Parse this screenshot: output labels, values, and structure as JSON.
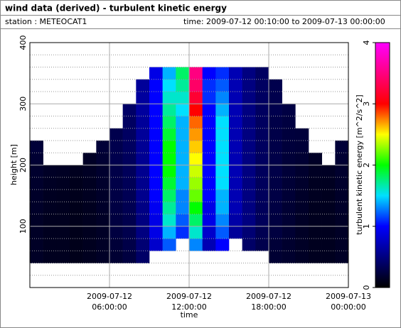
{
  "header": {
    "title": "wind data (derived) - turbulent kinetic energy",
    "station": "station : METEOCAT1",
    "time": "time: 2009-07-12 00:10:00 to 2009-07-13 00:00:00"
  },
  "chart_data": {
    "type": "heatmap",
    "x_label": "time",
    "y_label": "height [m]",
    "colorbar_label": "turbulent kinetic energy [m^2/s^2]",
    "xlim": [
      "2009-07-12 00:00:00",
      "2009-07-13 00:00:00"
    ],
    "xticks": [
      "2009-07-12 06:00:00",
      "2009-07-12 12:00:00",
      "2009-07-12 18:00:00",
      "2009-07-13 00:00:00"
    ],
    "ylim": [
      0,
      400
    ],
    "yticks": [
      100,
      200,
      300,
      400
    ],
    "y_minor_ticks": [
      20,
      40,
      60,
      80,
      120,
      140,
      160,
      180,
      220,
      240,
      260,
      280,
      320,
      340,
      360,
      380
    ],
    "clim": [
      0,
      4
    ],
    "cticks": [
      0,
      1,
      2,
      3,
      4
    ],
    "grid": true,
    "colorscale": [
      [
        0,
        "#000000"
      ],
      [
        0.5,
        "#000080"
      ],
      [
        1,
        "#0000ff"
      ],
      [
        1.5,
        "#00e0ff"
      ],
      [
        2,
        "#00ff00"
      ],
      [
        2.5,
        "#ffff00"
      ],
      [
        3,
        "#ff0000"
      ],
      [
        3.5,
        "#ff0080"
      ],
      [
        4,
        "#ff00ff"
      ]
    ],
    "x": [
      "2009-07-12 00:00:00",
      "2009-07-12 01:00:00",
      "2009-07-12 02:00:00",
      "2009-07-12 03:00:00",
      "2009-07-12 04:00:00",
      "2009-07-12 05:00:00",
      "2009-07-12 06:00:00",
      "2009-07-12 07:00:00",
      "2009-07-12 08:00:00",
      "2009-07-12 09:00:00",
      "2009-07-12 10:00:00",
      "2009-07-12 11:00:00",
      "2009-07-12 12:00:00",
      "2009-07-12 13:00:00",
      "2009-07-12 14:00:00",
      "2009-07-12 15:00:00",
      "2009-07-12 16:00:00",
      "2009-07-12 17:00:00",
      "2009-07-12 18:00:00",
      "2009-07-12 19:00:00",
      "2009-07-12 20:00:00",
      "2009-07-12 21:00:00",
      "2009-07-12 22:00:00",
      "2009-07-12 23:00:00"
    ],
    "y": [
      40,
      60,
      80,
      100,
      120,
      140,
      160,
      180,
      200,
      220,
      240,
      260,
      280,
      300,
      320,
      340
    ],
    "z": [
      [
        0.15,
        0.12,
        0.12,
        0.1,
        0.12,
        0.15,
        0.2,
        0.25,
        0.4,
        null,
        null,
        null,
        null,
        null,
        null,
        null,
        null,
        null,
        0.2,
        0.18,
        0.15,
        0.12,
        0.12,
        0.15
      ],
      [
        0.15,
        0.12,
        0.12,
        0.1,
        0.12,
        0.15,
        0.22,
        0.28,
        0.45,
        0.8,
        1.2,
        null,
        1.3,
        0.7,
        1.0,
        null,
        0.4,
        0.3,
        0.22,
        0.18,
        0.15,
        0.12,
        0.12,
        0.15
      ],
      [
        0.15,
        0.12,
        0.12,
        0.1,
        0.12,
        0.15,
        0.25,
        0.3,
        0.5,
        0.9,
        1.4,
        1.1,
        1.6,
        0.8,
        1.2,
        0.6,
        0.45,
        0.32,
        0.25,
        0.2,
        0.15,
        0.12,
        0.12,
        0.15
      ],
      [
        0.15,
        0.12,
        0.12,
        0.1,
        0.12,
        0.15,
        0.25,
        0.3,
        0.5,
        0.9,
        1.6,
        1.2,
        1.8,
        0.9,
        1.3,
        0.65,
        0.5,
        0.35,
        0.25,
        0.2,
        0.15,
        0.12,
        0.12,
        0.15
      ],
      [
        0.16,
        0.13,
        0.12,
        0.1,
        0.12,
        0.16,
        0.26,
        0.32,
        0.52,
        0.95,
        1.7,
        1.3,
        2.0,
        0.9,
        1.4,
        0.7,
        0.5,
        0.35,
        0.26,
        0.2,
        0.16,
        0.12,
        0.12,
        0.16
      ],
      [
        0.16,
        0.13,
        0.12,
        0.11,
        0.13,
        0.16,
        0.27,
        0.33,
        0.55,
        1.0,
        1.8,
        1.3,
        2.2,
        1.0,
        1.4,
        0.7,
        0.5,
        0.36,
        0.27,
        0.21,
        0.16,
        0.13,
        0.12,
        0.16
      ],
      [
        0.17,
        0.14,
        0.13,
        0.11,
        0.13,
        0.17,
        0.28,
        0.34,
        0.55,
        1.0,
        1.9,
        1.4,
        2.3,
        1.0,
        1.5,
        0.7,
        0.5,
        0.36,
        0.27,
        0.21,
        0.17,
        0.13,
        0.13,
        0.17
      ],
      [
        0.18,
        0.15,
        0.14,
        0.12,
        0.14,
        0.18,
        0.28,
        0.35,
        0.56,
        1.0,
        2.0,
        1.4,
        2.4,
        1.0,
        1.5,
        0.7,
        0.5,
        0.36,
        0.28,
        0.22,
        0.18,
        0.14,
        0.14,
        0.18
      ],
      [
        0.2,
        null,
        null,
        null,
        0.15,
        0.2,
        0.3,
        0.36,
        0.57,
        1.0,
        2.0,
        1.4,
        2.5,
        1.0,
        1.5,
        0.7,
        0.5,
        0.37,
        0.28,
        0.22,
        0.2,
        0.15,
        null,
        0.2
      ],
      [
        0.22,
        null,
        null,
        null,
        null,
        0.22,
        0.3,
        0.37,
        0.58,
        1.0,
        2.0,
        1.4,
        2.6,
        1.0,
        1.5,
        0.7,
        0.5,
        0.37,
        0.28,
        0.23,
        0.22,
        null,
        null,
        0.22
      ],
      [
        null,
        null,
        null,
        null,
        null,
        null,
        0.3,
        0.38,
        0.6,
        1.0,
        1.9,
        1.4,
        2.7,
        1.0,
        1.5,
        0.7,
        0.5,
        0.37,
        0.28,
        0.24,
        0.23,
        null,
        null,
        null
      ],
      [
        null,
        null,
        null,
        null,
        null,
        null,
        null,
        0.38,
        0.6,
        1.0,
        1.8,
        1.4,
        2.8,
        1.0,
        1.5,
        0.7,
        0.5,
        0.37,
        0.28,
        0.25,
        null,
        null,
        null,
        null
      ],
      [
        null,
        null,
        null,
        null,
        null,
        null,
        null,
        0.4,
        0.62,
        1.0,
        1.7,
        1.5,
        3.0,
        1.0,
        1.4,
        0.7,
        0.5,
        0.37,
        0.3,
        0.26,
        null,
        null,
        null,
        null
      ],
      [
        null,
        null,
        null,
        null,
        null,
        null,
        null,
        null,
        0.62,
        1.0,
        1.6,
        1.6,
        3.2,
        1.1,
        1.3,
        0.7,
        0.5,
        0.38,
        0.3,
        null,
        null,
        null,
        null,
        null
      ],
      [
        null,
        null,
        null,
        null,
        null,
        null,
        null,
        null,
        0.6,
        1.0,
        1.5,
        1.7,
        3.4,
        1.1,
        1.2,
        0.7,
        0.5,
        0.38,
        0.3,
        null,
        null,
        null,
        null,
        null
      ],
      [
        null,
        null,
        null,
        null,
        null,
        null,
        null,
        null,
        null,
        0.9,
        1.4,
        1.8,
        3.5,
        1.0,
        1.1,
        0.7,
        0.5,
        0.38,
        null,
        null,
        null,
        null,
        null,
        null
      ]
    ]
  }
}
